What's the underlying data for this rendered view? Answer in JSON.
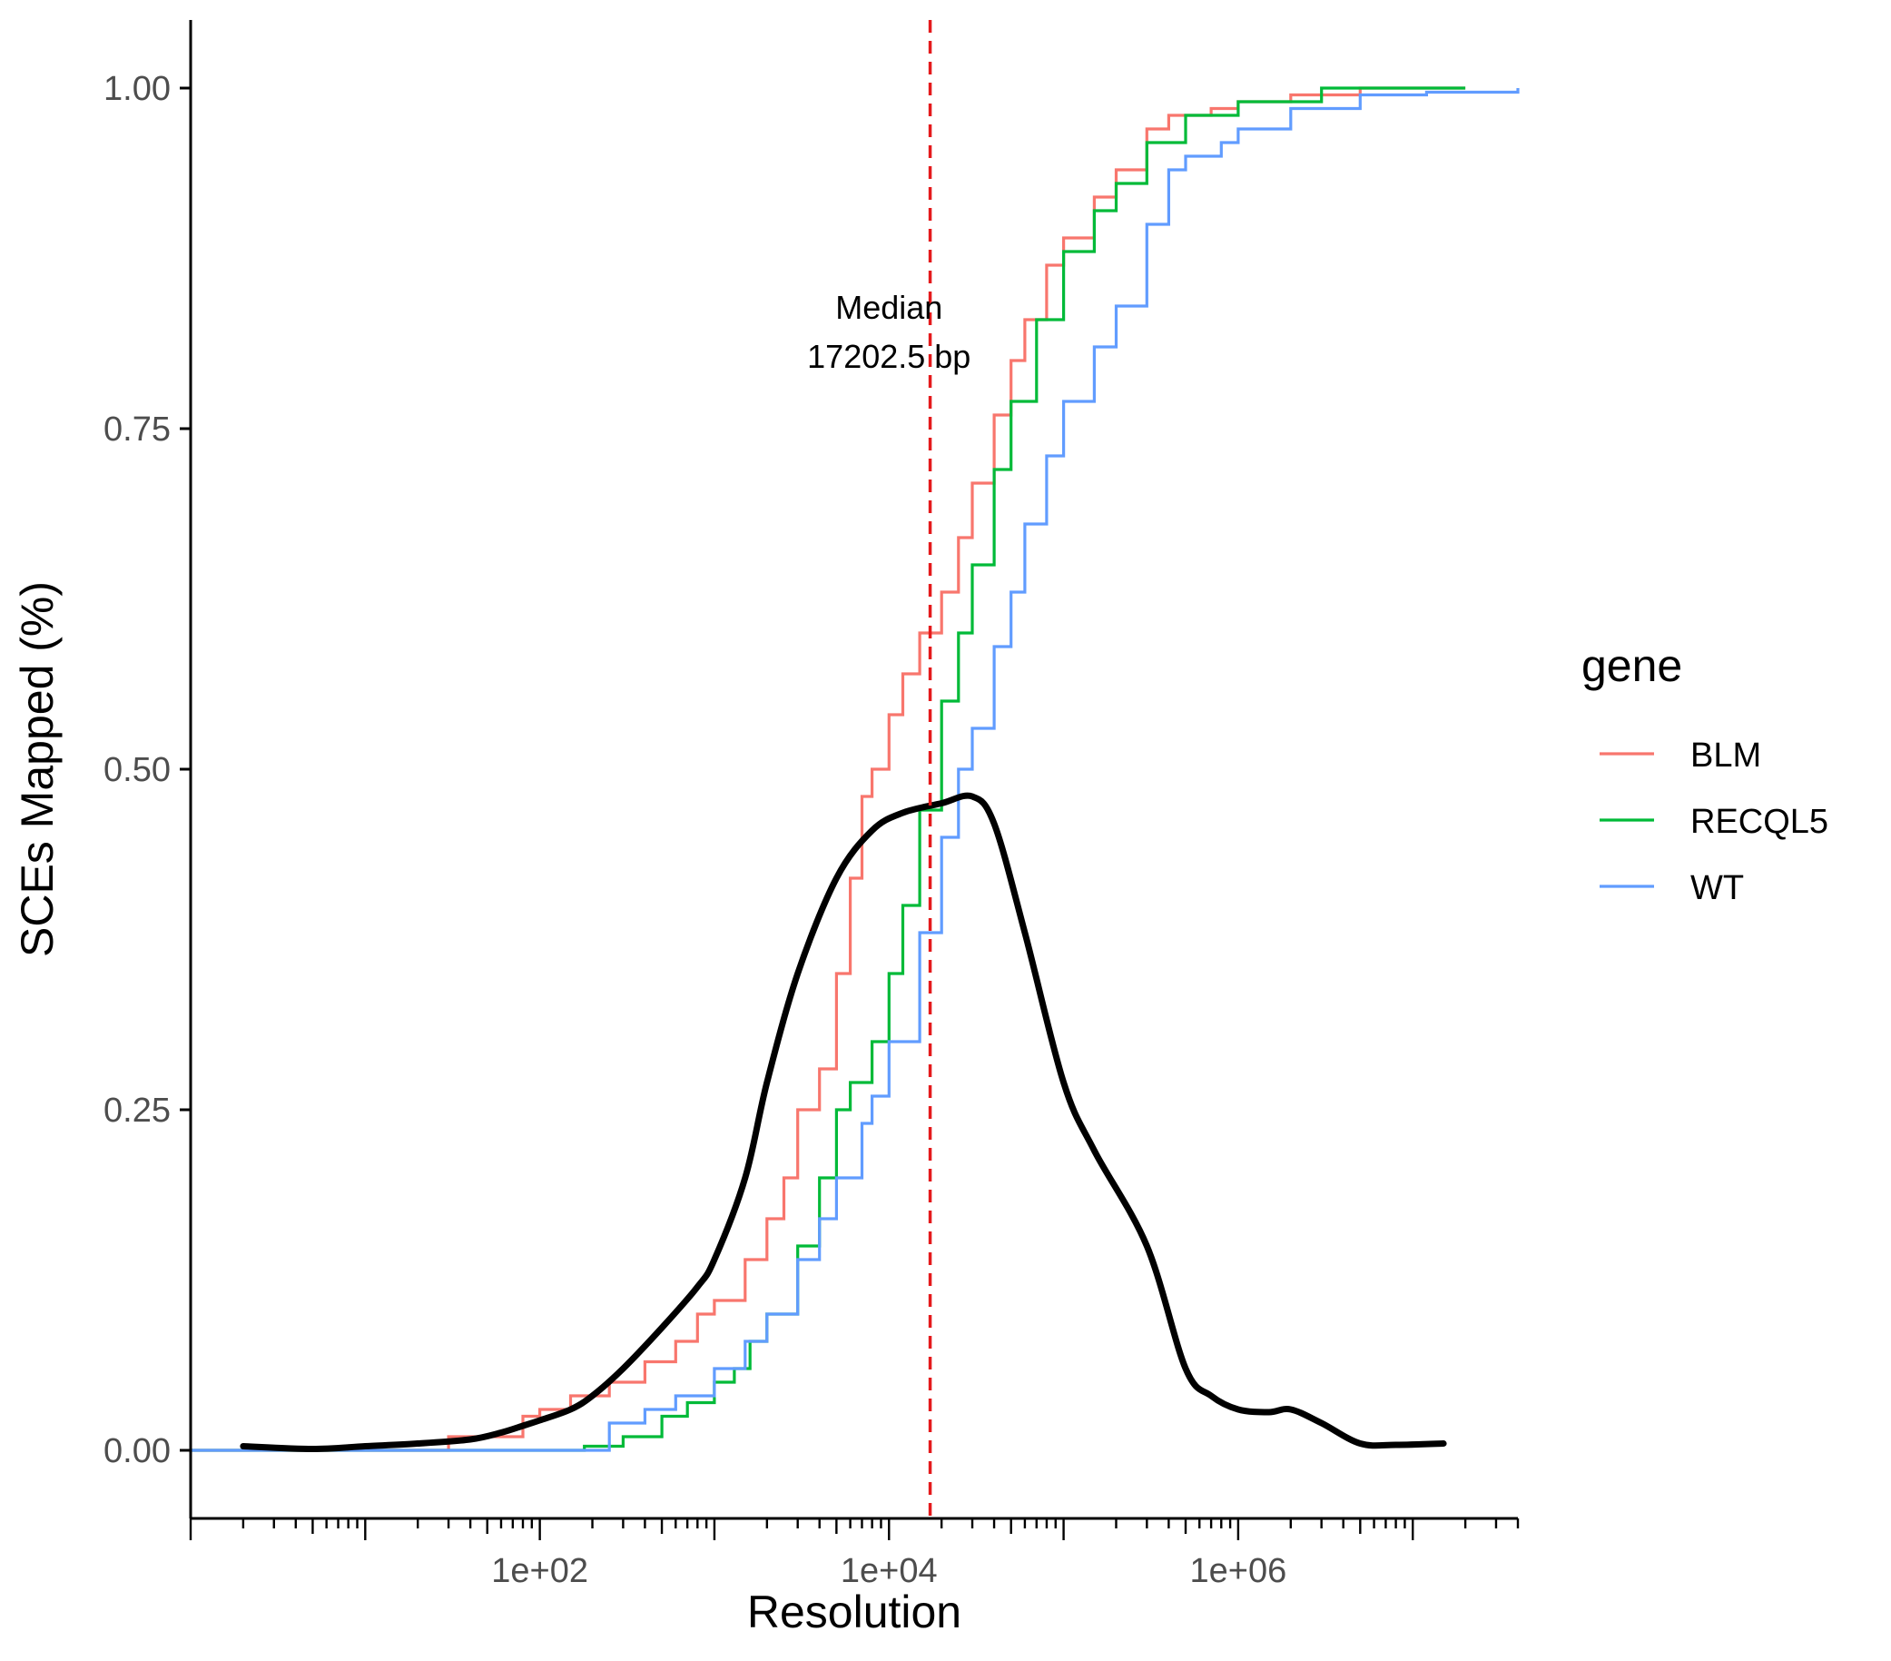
{
  "chart_data": {
    "type": "line",
    "xlabel": "Resolution",
    "ylabel": "SCEs Mapped (%)",
    "x_scale": "log10",
    "xlim": [
      1,
      40000000
    ],
    "ylim": [
      -0.05,
      1.05
    ],
    "x_ticks": [
      {
        "value": 100,
        "label": "1e+02"
      },
      {
        "value": 10000,
        "label": "1e+04"
      },
      {
        "value": 1000000,
        "label": "1e+06"
      }
    ],
    "y_ticks": [
      {
        "value": 0,
        "label": "0.00"
      },
      {
        "value": 0.25,
        "label": "0.25"
      },
      {
        "value": 0.5,
        "label": "0.50"
      },
      {
        "value": 0.75,
        "label": "0.75"
      },
      {
        "value": 1,
        "label": "1.00"
      }
    ],
    "grid": false,
    "legend": {
      "title": "gene",
      "position": "right"
    },
    "series": [
      {
        "name": "BLM",
        "color": "#F8766D",
        "style": "step",
        "points": [
          [
            1,
            0
          ],
          [
            20,
            0
          ],
          [
            30,
            0.01
          ],
          [
            50,
            0.01
          ],
          [
            80,
            0.025
          ],
          [
            100,
            0.03
          ],
          [
            150,
            0.04
          ],
          [
            250,
            0.05
          ],
          [
            400,
            0.065
          ],
          [
            600,
            0.08
          ],
          [
            800,
            0.1
          ],
          [
            1000,
            0.11
          ],
          [
            1500,
            0.14
          ],
          [
            2000,
            0.17
          ],
          [
            2500,
            0.2
          ],
          [
            3000,
            0.25
          ],
          [
            4000,
            0.28
          ],
          [
            5000,
            0.35
          ],
          [
            6000,
            0.42
          ],
          [
            7000,
            0.48
          ],
          [
            8000,
            0.5
          ],
          [
            10000,
            0.54
          ],
          [
            12000,
            0.57
          ],
          [
            15000,
            0.6
          ],
          [
            20000,
            0.63
          ],
          [
            25000,
            0.67
          ],
          [
            30000,
            0.71
          ],
          [
            40000,
            0.76
          ],
          [
            50000,
            0.8
          ],
          [
            60000,
            0.83
          ],
          [
            80000,
            0.87
          ],
          [
            100000,
            0.89
          ],
          [
            150000,
            0.92
          ],
          [
            200000,
            0.94
          ],
          [
            300000,
            0.97
          ],
          [
            400000,
            0.98
          ],
          [
            700000,
            0.985
          ],
          [
            1000000,
            0.99
          ],
          [
            2000000,
            0.995
          ],
          [
            5000000,
            1
          ],
          [
            20000000,
            1
          ]
        ]
      },
      {
        "name": "RECQL5",
        "color": "#00BA38",
        "style": "step",
        "points": [
          [
            1,
            0
          ],
          [
            150,
            0
          ],
          [
            180,
            0.003
          ],
          [
            300,
            0.01
          ],
          [
            500,
            0.025
          ],
          [
            700,
            0.035
          ],
          [
            1000,
            0.05
          ],
          [
            1300,
            0.06
          ],
          [
            1600,
            0.08
          ],
          [
            2000,
            0.1
          ],
          [
            3000,
            0.15
          ],
          [
            4000,
            0.2
          ],
          [
            5000,
            0.25
          ],
          [
            6000,
            0.27
          ],
          [
            8000,
            0.3
          ],
          [
            10000,
            0.35
          ],
          [
            12000,
            0.4
          ],
          [
            15000,
            0.47
          ],
          [
            20000,
            0.55
          ],
          [
            25000,
            0.6
          ],
          [
            30000,
            0.65
          ],
          [
            40000,
            0.72
          ],
          [
            50000,
            0.77
          ],
          [
            70000,
            0.83
          ],
          [
            100000,
            0.88
          ],
          [
            150000,
            0.91
          ],
          [
            200000,
            0.93
          ],
          [
            300000,
            0.96
          ],
          [
            500000,
            0.98
          ],
          [
            1000000,
            0.99
          ],
          [
            3000000,
            1
          ],
          [
            20000000,
            1
          ]
        ]
      },
      {
        "name": "WT",
        "color": "#619CFF",
        "style": "step",
        "points": [
          [
            1,
            0
          ],
          [
            180,
            0
          ],
          [
            250,
            0.02
          ],
          [
            400,
            0.03
          ],
          [
            600,
            0.04
          ],
          [
            1000,
            0.06
          ],
          [
            1500,
            0.08
          ],
          [
            2000,
            0.1
          ],
          [
            3000,
            0.14
          ],
          [
            4000,
            0.17
          ],
          [
            5000,
            0.2
          ],
          [
            7000,
            0.24
          ],
          [
            8000,
            0.26
          ],
          [
            10000,
            0.3
          ],
          [
            15000,
            0.38
          ],
          [
            20000,
            0.45
          ],
          [
            25000,
            0.5
          ],
          [
            30000,
            0.53
          ],
          [
            40000,
            0.59
          ],
          [
            50000,
            0.63
          ],
          [
            60000,
            0.68
          ],
          [
            80000,
            0.73
          ],
          [
            100000,
            0.77
          ],
          [
            150000,
            0.81
          ],
          [
            200000,
            0.84
          ],
          [
            300000,
            0.9
          ],
          [
            400000,
            0.94
          ],
          [
            500000,
            0.95
          ],
          [
            800000,
            0.96
          ],
          [
            1000000,
            0.97
          ],
          [
            2000000,
            0.985
          ],
          [
            5000000,
            0.995
          ],
          [
            12000000,
            0.997
          ],
          [
            40000000,
            1
          ]
        ]
      },
      {
        "name": "",
        "color": "#000000",
        "style": "smooth",
        "points": [
          [
            2,
            0.003
          ],
          [
            5,
            0.001
          ],
          [
            10,
            0.003
          ],
          [
            20,
            0.005
          ],
          [
            40,
            0.008
          ],
          [
            60,
            0.013
          ],
          [
            80,
            0.018
          ],
          [
            100,
            0.022
          ],
          [
            150,
            0.03
          ],
          [
            200,
            0.04
          ],
          [
            300,
            0.06
          ],
          [
            500,
            0.09
          ],
          [
            800,
            0.12
          ],
          [
            1000,
            0.14
          ],
          [
            1500,
            0.2
          ],
          [
            2000,
            0.27
          ],
          [
            3000,
            0.35
          ],
          [
            5000,
            0.42
          ],
          [
            8000,
            0.455
          ],
          [
            12000,
            0.468
          ],
          [
            20000,
            0.475
          ],
          [
            30000,
            0.48
          ],
          [
            40000,
            0.46
          ],
          [
            60000,
            0.38
          ],
          [
            100000,
            0.27
          ],
          [
            150000,
            0.22
          ],
          [
            300000,
            0.15
          ],
          [
            500000,
            0.06
          ],
          [
            700000,
            0.04
          ],
          [
            1000000,
            0.03
          ],
          [
            1500000,
            0.028
          ],
          [
            2000000,
            0.03
          ],
          [
            3000000,
            0.02
          ],
          [
            5000000,
            0.005
          ],
          [
            8000000,
            0.004
          ],
          [
            15000000,
            0.005
          ]
        ]
      }
    ],
    "reference_line": {
      "axis": "x",
      "value": 17202.5,
      "color": "#E41A1C",
      "dash": "dashed"
    },
    "annotation": {
      "lines": [
        "Median",
        "17202.5 bp"
      ],
      "x": 10000,
      "y": 0.8
    }
  }
}
